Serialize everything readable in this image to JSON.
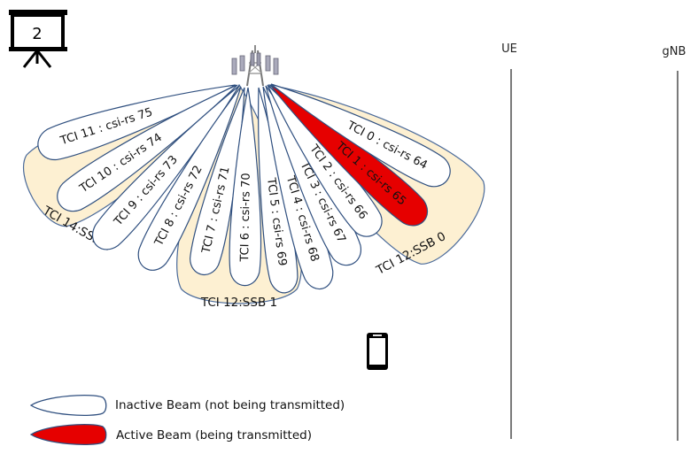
{
  "slide_number": "2",
  "lanes": {
    "ue": "UE",
    "gnb": "gNB"
  },
  "colors": {
    "ssb_fill": "#fdf0d2",
    "ssb_stroke": "#4a6a9a",
    "beam_stroke": "#2f4f7f",
    "inactive_fill": "#ffffff",
    "active_fill": "#e60000"
  },
  "ssb_beams": [
    {
      "id": "ssb2",
      "label": "TCI 14:SSB 2"
    },
    {
      "id": "ssb1",
      "label": "TCI 12:SSB 1"
    },
    {
      "id": "ssb0",
      "label": "TCI 12:SSB 0"
    }
  ],
  "csi_beams": [
    {
      "label": "TCI 11 : csi-rs 75",
      "active": false
    },
    {
      "label": "TCI 10 : csi-rs 74",
      "active": false
    },
    {
      "label": "TCI 9 : csi-rs 73",
      "active": false
    },
    {
      "label": "TCI 8 : csi-rs 72",
      "active": false
    },
    {
      "label": "TCI 7 : csi-rs 71",
      "active": false
    },
    {
      "label": "TCI 6 : csi-rs 70",
      "active": false
    },
    {
      "label": "TCI 5 : csi-rs 69",
      "active": false
    },
    {
      "label": "TCI 4 : csi-rs 68",
      "active": false
    },
    {
      "label": "TCI 3 : csi-rs 67",
      "active": false
    },
    {
      "label": "TCI 2 : csi-rs 66",
      "active": false
    },
    {
      "label": "TCI 1 : csi-rs 65",
      "active": true
    },
    {
      "label": "TCI 0 : csi-rs 64",
      "active": false
    }
  ],
  "legend": {
    "inactive": "Inactive Beam (not being  transmitted)",
    "active": "Active Beam (being  transmitted)"
  },
  "icons": {
    "slide": "presentation-board-icon",
    "tower": "cell-tower-icon",
    "ue": "mobile-phone-icon"
  }
}
